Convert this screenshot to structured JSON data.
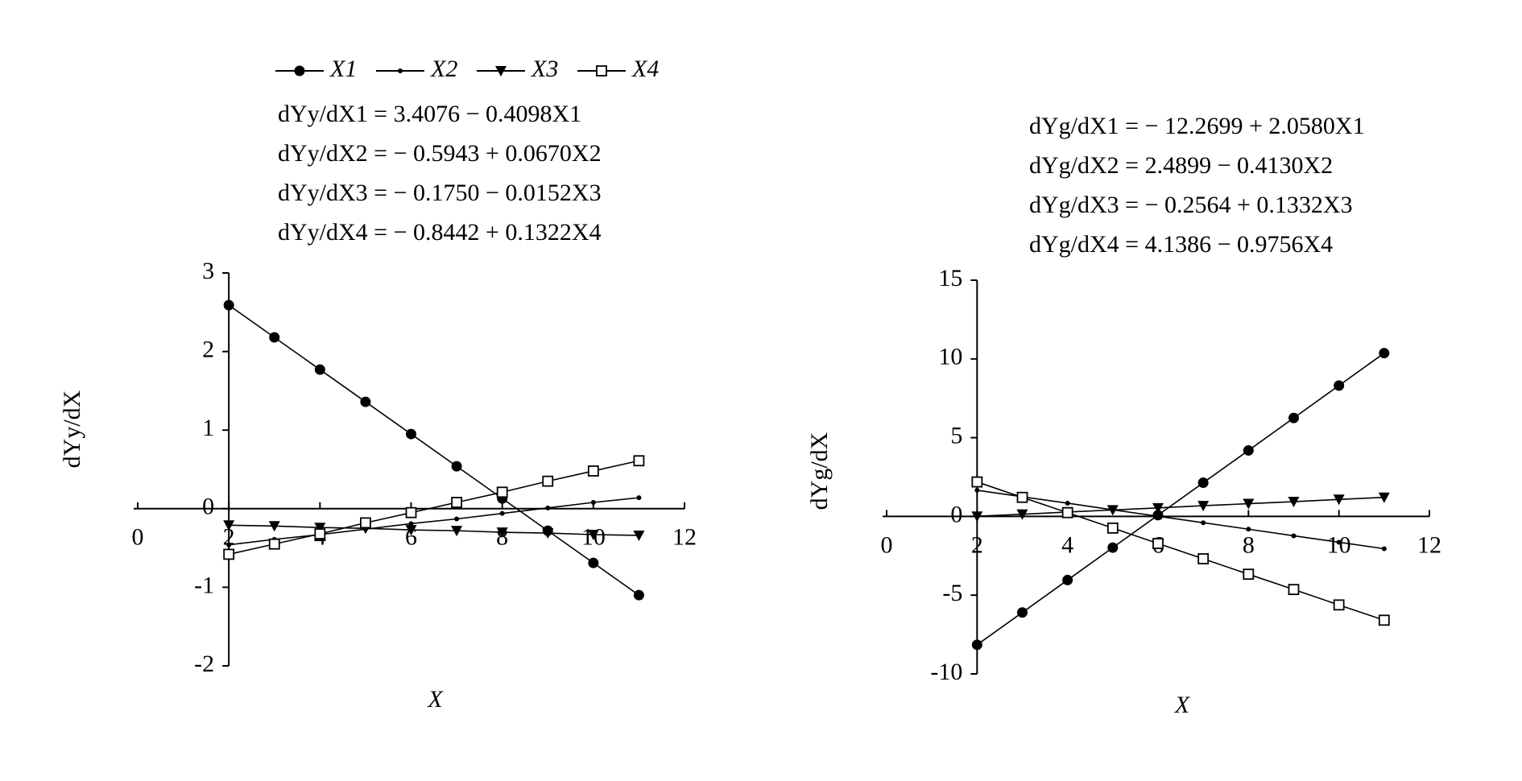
{
  "chart_data": [
    {
      "type": "line",
      "x_label": "X",
      "y_label": "dYy/dX",
      "xlim": [
        0,
        12
      ],
      "xticks": [
        0,
        2,
        4,
        6,
        8,
        10,
        12
      ],
      "ylim": [
        -2,
        3
      ],
      "yticks": [
        -2,
        -1,
        0,
        1,
        2,
        3
      ],
      "legend": "top",
      "annotations": [
        "dYy/dX1 = 3.4076  − 0.4098X1",
        "dYy/dX2 = − 0.5943 + 0.0670X2",
        "dYy/dX3 = − 0.1750 − 0.0152X3",
        "dYy/dX4 = − 0.8442 + 0.1322X4"
      ],
      "x": [
        2,
        3,
        4,
        5,
        6,
        7,
        8,
        9,
        10,
        11
      ],
      "series": [
        {
          "name": "X1",
          "color": "#000000",
          "marker": "circle",
          "values": [
            2.59,
            2.18,
            1.77,
            1.36,
            0.95,
            0.54,
            0.13,
            -0.28,
            -0.69,
            -1.1
          ]
        },
        {
          "name": "X2",
          "color": "#000000",
          "marker": "dot",
          "values": [
            -0.46,
            -0.39,
            -0.33,
            -0.26,
            -0.19,
            -0.13,
            -0.06,
            0.01,
            0.08,
            0.14
          ]
        },
        {
          "name": "X3",
          "color": "#000000",
          "marker": "triangle",
          "values": [
            -0.21,
            -0.22,
            -0.24,
            -0.25,
            -0.27,
            -0.28,
            -0.3,
            -0.31,
            -0.33,
            -0.34
          ]
        },
        {
          "name": "X4",
          "color": "#000000",
          "marker": "square",
          "values": [
            -0.58,
            -0.45,
            -0.32,
            -0.18,
            -0.05,
            0.08,
            0.21,
            0.35,
            0.48,
            0.61
          ]
        }
      ]
    },
    {
      "type": "line",
      "x_label": "X",
      "y_label": "dYg/dX",
      "xlim": [
        0,
        12
      ],
      "xticks": [
        0,
        2,
        4,
        6,
        8,
        10,
        12
      ],
      "ylim": [
        -10,
        15
      ],
      "yticks": [
        -10,
        -5,
        0,
        5,
        10,
        15
      ],
      "annotations": [
        "dYg/dX1 = − 12.2699 + 2.0580X1",
        "dYg/dX2 = 2.4899 − 0.4130X2",
        "dYg/dX3 = − 0.2564 + 0.1332X3",
        "dYg/dX4 = 4.1386 − 0.9756X4"
      ],
      "x": [
        2,
        3,
        4,
        5,
        6,
        7,
        8,
        9,
        10,
        11
      ],
      "series": [
        {
          "color": "#000000",
          "marker": "circle",
          "values": [
            -8.15,
            -6.1,
            -4.04,
            -1.98,
            0.08,
            2.14,
            4.19,
            6.25,
            8.31,
            10.37
          ]
        },
        {
          "color": "#000000",
          "marker": "dot",
          "values": [
            1.66,
            1.25,
            0.84,
            0.42,
            0.01,
            -0.4,
            -0.81,
            -1.23,
            -1.64,
            -2.05
          ]
        },
        {
          "color": "#000000",
          "marker": "triangle",
          "values": [
            0.01,
            0.14,
            0.28,
            0.41,
            0.54,
            0.68,
            0.81,
            0.94,
            1.08,
            1.21
          ]
        },
        {
          "color": "#000000",
          "marker": "square",
          "values": [
            2.19,
            1.21,
            0.24,
            -0.74,
            -1.72,
            -2.69,
            -3.67,
            -4.64,
            -5.62,
            -6.59
          ]
        }
      ]
    }
  ]
}
